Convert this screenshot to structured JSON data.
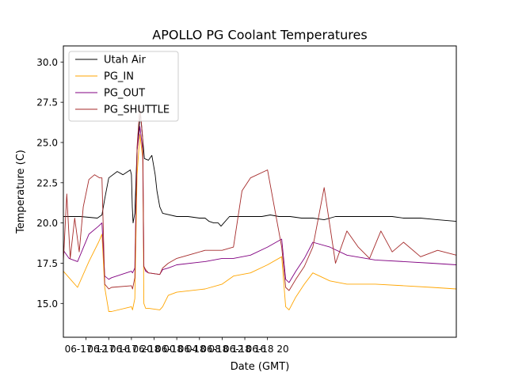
{
  "chart_data": {
    "type": "line",
    "title": "APOLLO PG Coolant Temperatures",
    "xlabel": "Date (GMT)",
    "ylabel": "Temperature (C)",
    "xlim": [
      0,
      69.3
    ],
    "ylim": [
      12.9,
      31.0
    ],
    "grid": false,
    "legend_position": "upper-left",
    "x_units": "hours since 06-17 08:00 GMT",
    "yticks": [
      {
        "value": 15.0,
        "label": "15.0"
      },
      {
        "value": 17.5,
        "label": "17.5"
      },
      {
        "value": 20.0,
        "label": "20.0"
      },
      {
        "value": 22.5,
        "label": "22.5"
      },
      {
        "value": 25.0,
        "label": "25.0"
      },
      {
        "value": 27.5,
        "label": "27.5"
      },
      {
        "value": 30.0,
        "label": "30.0"
      }
    ],
    "xticks": [
      {
        "value": 4,
        "label": "06-17 12"
      },
      {
        "value": 8,
        "label": "06-17 16"
      },
      {
        "value": 12,
        "label": "06-17 20"
      },
      {
        "value": 16,
        "label": "06-18 00"
      },
      {
        "value": 20,
        "label": "06-18 04"
      },
      {
        "value": 24,
        "label": "06-18 08"
      },
      {
        "value": 28,
        "label": "06-18 12"
      },
      {
        "value": 32,
        "label": "06-18 16"
      },
      {
        "value": 36,
        "label": "06-18 20"
      }
    ],
    "series": [
      {
        "name": "Utah Air",
        "color": "#000000",
        "x": [
          0,
          3,
          6,
          6.8,
          7.3,
          8.0,
          9.5,
          10.5,
          11.8,
          12.0,
          12.15,
          12.3,
          12.6,
          13.0,
          13.6,
          14.3,
          15.0,
          15.6,
          16.2,
          16.5,
          17.0,
          17.5,
          20,
          22,
          24.0,
          25.0,
          25.7,
          26.5,
          27.3,
          27.8,
          28.3,
          29.3,
          31,
          33,
          35,
          36.5,
          38,
          40,
          42,
          44,
          46,
          48,
          50,
          52,
          54,
          56,
          58,
          60,
          63,
          66,
          69.3
        ],
        "y": [
          20.4,
          20.4,
          20.3,
          20.5,
          21.5,
          22.8,
          23.2,
          23.0,
          23.3,
          23.0,
          21.0,
          20.0,
          20.6,
          24.5,
          26.8,
          24.0,
          23.9,
          24.2,
          23.0,
          22.0,
          21.0,
          20.6,
          20.4,
          20.4,
          20.3,
          20.3,
          20.1,
          20.0,
          20.0,
          19.8,
          20.0,
          20.4,
          20.4,
          20.4,
          20.4,
          20.5,
          20.4,
          20.4,
          20.3,
          20.3,
          20.2,
          20.4,
          20.4,
          20.4,
          20.4,
          20.4,
          20.4,
          20.3,
          20.3,
          20.2,
          20.1
        ]
      },
      {
        "name": "PG_IN",
        "color": "#ffa500",
        "x": [
          0,
          1,
          2.5,
          4.5,
          6.2,
          6.8,
          7.3,
          8.0,
          8.5,
          12.0,
          12.2,
          12.6,
          13.0,
          13.5,
          14.0,
          14.2,
          14.5,
          15.0,
          17.0,
          17.5,
          18.5,
          20,
          25,
          28,
          30,
          33,
          36,
          38.5,
          39.2,
          39.8,
          41,
          42.5,
          44,
          47,
          50,
          55,
          60,
          65,
          69.3
        ],
        "y": [
          17.0,
          16.6,
          16.0,
          17.6,
          18.8,
          19.3,
          16.0,
          14.5,
          14.5,
          14.8,
          14.6,
          15.3,
          23.0,
          25.5,
          24.0,
          15.0,
          14.7,
          14.7,
          14.6,
          14.8,
          15.5,
          15.7,
          15.9,
          16.2,
          16.7,
          16.9,
          17.4,
          17.9,
          14.8,
          14.6,
          15.4,
          16.2,
          16.9,
          16.4,
          16.2,
          16.2,
          16.1,
          16.0,
          15.9
        ]
      },
      {
        "name": "PG_OUT",
        "color": "#800080",
        "x": [
          0,
          1,
          2.5,
          4.5,
          6.2,
          6.8,
          7.3,
          8.0,
          8.5,
          12.0,
          12.2,
          12.6,
          13.0,
          13.5,
          14.0,
          14.2,
          14.5,
          15.0,
          17.0,
          17.5,
          18.5,
          20,
          25,
          28,
          30,
          33,
          36,
          38.5,
          39.2,
          39.8,
          41,
          42.5,
          44,
          47,
          50,
          55,
          60,
          65,
          69.3
        ],
        "y": [
          18.3,
          17.8,
          17.6,
          19.3,
          19.8,
          20.0,
          16.7,
          16.5,
          16.6,
          17.0,
          16.9,
          17.2,
          24.5,
          26.0,
          24.5,
          17.3,
          17.0,
          16.9,
          16.8,
          17.1,
          17.2,
          17.4,
          17.6,
          17.8,
          17.8,
          18.0,
          18.5,
          19.0,
          16.5,
          16.3,
          17.0,
          17.8,
          18.8,
          18.5,
          18.0,
          17.7,
          17.6,
          17.5,
          17.4
        ]
      },
      {
        "name": "PG_SHUTTLE",
        "color": "#a52a2a",
        "x": [
          0,
          0.6,
          1.2,
          2.0,
          2.8,
          3.5,
          4.5,
          5.5,
          6.4,
          6.8,
          7.3,
          8.0,
          8.5,
          12.0,
          12.2,
          12.6,
          13.0,
          13.5,
          14.0,
          14.2,
          14.5,
          15.0,
          17.0,
          17.5,
          18.5,
          20,
          23,
          25,
          26,
          28,
          30,
          31.5,
          33,
          36,
          38.5,
          39.2,
          39.8,
          41,
          42.5,
          44,
          46,
          48,
          50,
          52,
          54,
          56,
          58,
          60,
          63,
          66,
          69.3
        ],
        "y": [
          17.6,
          21.8,
          17.8,
          20.3,
          18.2,
          21.0,
          22.7,
          23.0,
          22.8,
          22.8,
          16.2,
          15.9,
          16.0,
          16.1,
          15.9,
          16.6,
          24.7,
          27.3,
          25.2,
          17.3,
          17.1,
          16.9,
          16.8,
          17.2,
          17.5,
          17.8,
          18.1,
          18.3,
          18.3,
          18.3,
          18.5,
          22.0,
          22.8,
          23.3,
          18.5,
          16.0,
          15.8,
          16.5,
          17.3,
          18.5,
          22.2,
          17.5,
          19.5,
          18.5,
          17.8,
          19.5,
          18.2,
          18.8,
          17.9,
          18.3,
          18.0
        ]
      }
    ]
  }
}
